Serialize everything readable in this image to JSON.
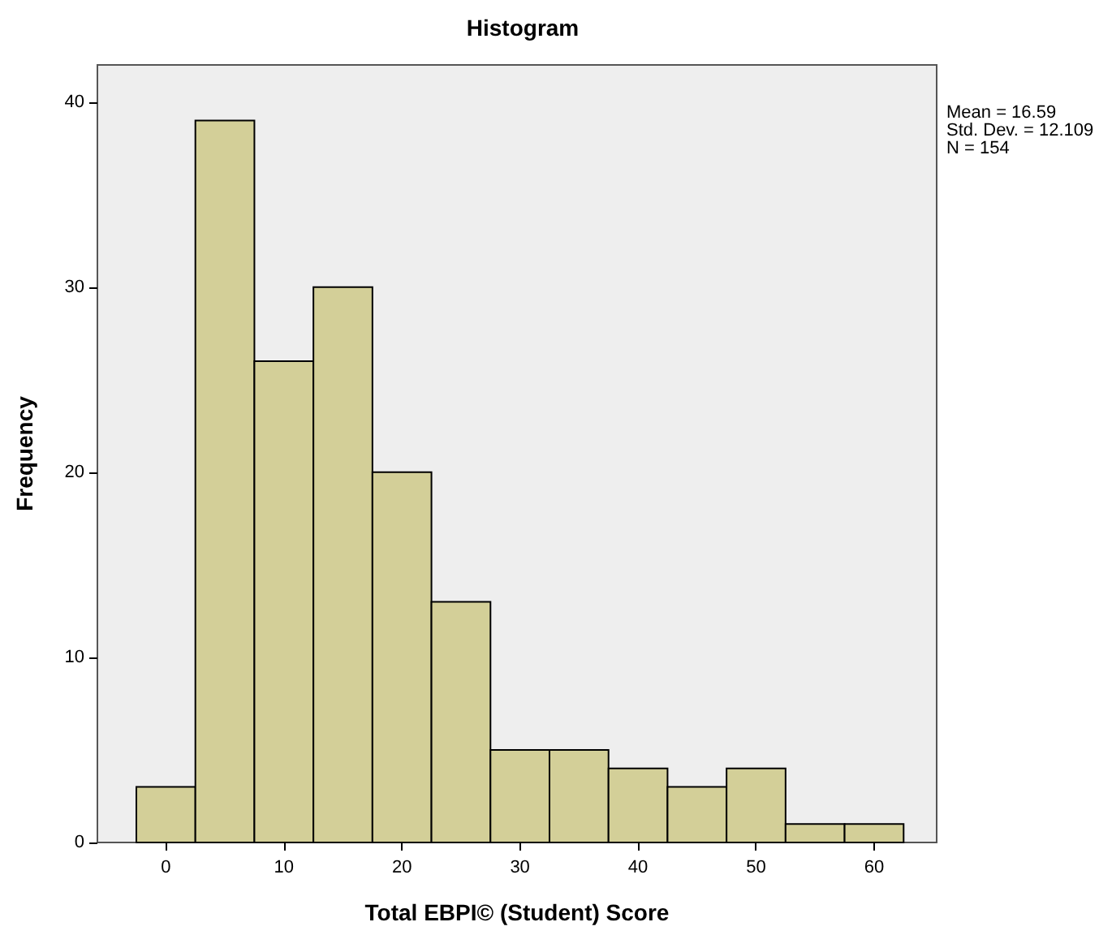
{
  "chart_data": {
    "type": "histogram",
    "title": "Histogram",
    "xlabel": "Total EBPI© (Student) Score",
    "ylabel": "Frequency",
    "bins": [
      -2.5,
      2.5,
      7.5,
      12.5,
      17.5,
      22.5,
      27.5,
      32.5,
      37.5,
      42.5,
      47.5,
      52.5,
      57.5,
      62.5
    ],
    "values": [
      3,
      39,
      26,
      30,
      20,
      13,
      5,
      5,
      4,
      3,
      4,
      1,
      1
    ],
    "color": "#d3cf98",
    "xlim": [
      -5.8,
      65.3
    ],
    "xticks": [
      0,
      10,
      20,
      30,
      40,
      50,
      60
    ],
    "ylim": [
      0,
      42
    ],
    "yticks": [
      0,
      10,
      20,
      30,
      40
    ],
    "annotations": [
      "Mean = 16.59",
      "Std. Dev. = 12.109",
      "N = 154"
    ]
  }
}
